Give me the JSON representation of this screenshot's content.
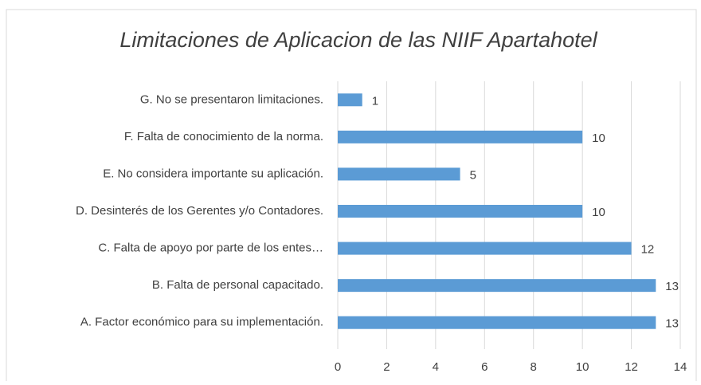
{
  "chart_data": {
    "type": "barh",
    "title": "Limitaciones  de Aplicacion de las  NIIF Apartahotel",
    "categories": [
      "G.  No se presentaron limitaciones.",
      "F.  Falta de conocimiento de la norma.",
      "E.   No considera importante su aplicación.",
      "D.  Desinterés de los Gerentes y/o Contadores.",
      "C.  Falta de apoyo por parte de los entes…",
      "B.  Falta de personal capacitado.",
      "A.  Factor económico para su implementación."
    ],
    "values": [
      1,
      10,
      5,
      10,
      12,
      13,
      13
    ],
    "color": "#5b9bd5",
    "xlim": [
      0,
      14
    ],
    "xticks": [
      0,
      2,
      4,
      6,
      8,
      10,
      12,
      14
    ],
    "grid": true
  }
}
